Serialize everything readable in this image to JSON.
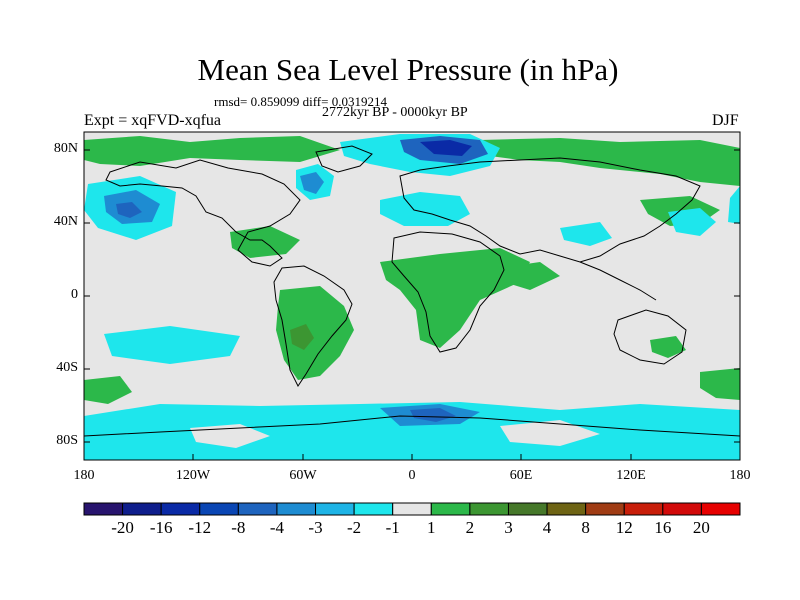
{
  "title": "Mean Sea Level Pressure (in hPa)",
  "stats": "rmsd= 0.859099 diff= 0.0319214",
  "period": "2772kyr BP - 0000kyr BP",
  "experiment": "Expt = xqFVD-xqfua",
  "season": "DJF",
  "axes": {
    "y_ticks": [
      "80N",
      "40N",
      "0",
      "40S",
      "80S"
    ],
    "x_ticks": [
      "180",
      "120W",
      "60W",
      "0",
      "60E",
      "120E",
      "180"
    ]
  },
  "colorbar": {
    "labels": [
      "-20",
      "-16",
      "-12",
      "-8",
      "-4",
      "-3",
      "-2",
      "-1",
      "1",
      "2",
      "3",
      "4",
      "8",
      "12",
      "16",
      "20"
    ],
    "colors": [
      "#28146e",
      "#0f1e8c",
      "#0a2aa6",
      "#0a46b4",
      "#1e64be",
      "#1e8cd2",
      "#1eb4e6",
      "#1ee6ec",
      "#e6e6e6",
      "#2cb84a",
      "#3c9632",
      "#46782a",
      "#6e6414",
      "#a03c14",
      "#c81e0a",
      "#d20a0a",
      "#e60000"
    ]
  },
  "palette": {
    "land_line": "#000000",
    "background": "#e6e6e6"
  }
}
